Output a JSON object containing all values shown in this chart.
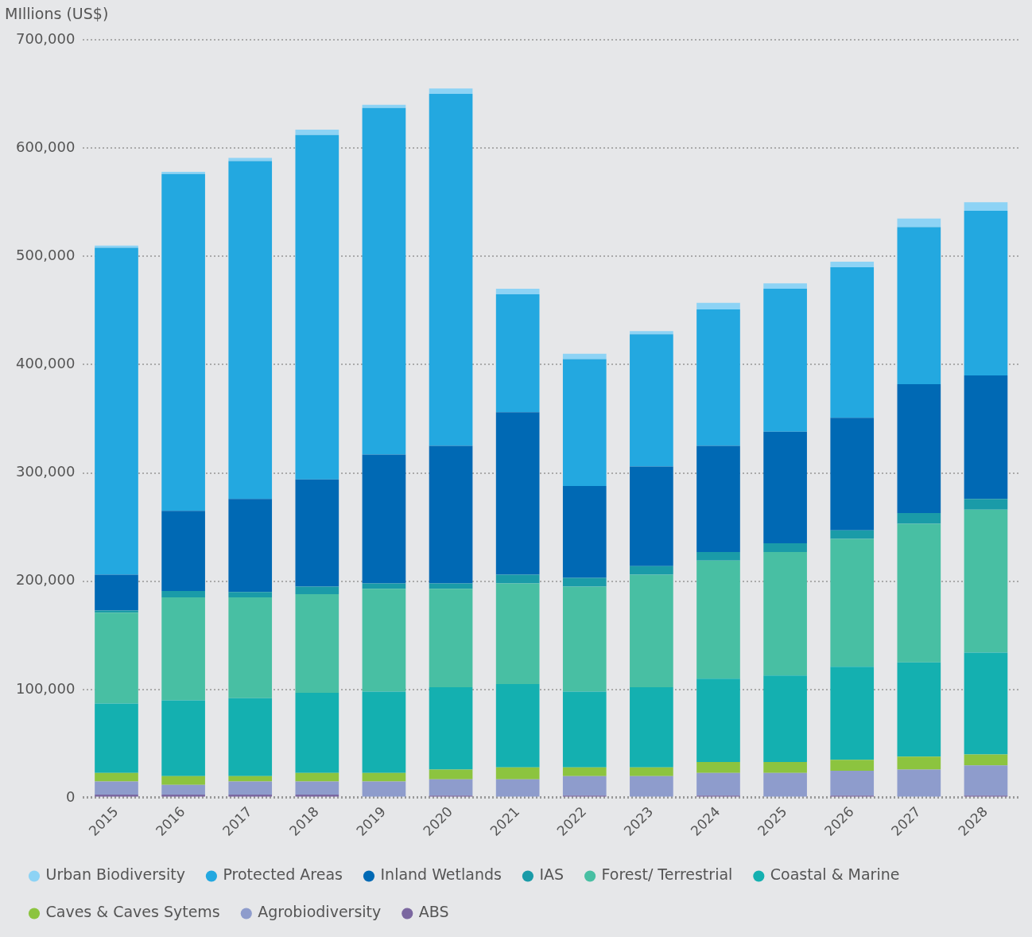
{
  "chart_data": {
    "type": "bar",
    "stacked": true,
    "ylabel": "MIllions (US$)",
    "categories": [
      "2015",
      "2016",
      "2017",
      "2018",
      "2019",
      "2020",
      "2021",
      "2022",
      "2023",
      "2024",
      "2025",
      "2026",
      "2027",
      "2028"
    ],
    "series": [
      {
        "name": "ABS",
        "color": "#7b67a0",
        "values": [
          3000,
          3000,
          3000,
          3000,
          0,
          2000,
          0,
          2000,
          0,
          2000,
          0,
          2000,
          0,
          2000
        ]
      },
      {
        "name": "Agrobiodiversity",
        "color": "#8e9ccc",
        "values": [
          12000,
          9000,
          12000,
          12000,
          15000,
          15000,
          17000,
          18000,
          20000,
          21000,
          23000,
          23000,
          26000,
          28000
        ]
      },
      {
        "name": "Caves & Caves Sytems",
        "color": "#8cc43f",
        "values": [
          8000,
          8000,
          5000,
          8000,
          8000,
          9000,
          11000,
          8000,
          8000,
          10000,
          10000,
          10000,
          12000,
          10000
        ]
      },
      {
        "name": "Coastal & Marine",
        "color": "#14b0b0",
        "values": [
          64000,
          70000,
          72000,
          74000,
          75000,
          76000,
          77000,
          70000,
          74000,
          77000,
          80000,
          86000,
          87000,
          94000
        ]
      },
      {
        "name": "Forest/ Terrestrial",
        "color": "#48bfa3",
        "values": [
          84000,
          95000,
          93000,
          91000,
          95000,
          91000,
          93000,
          97000,
          104000,
          109000,
          114000,
          118000,
          128000,
          132000
        ]
      },
      {
        "name": "IAS",
        "color": "#1a9ba8",
        "values": [
          2000,
          6000,
          5000,
          7000,
          5000,
          5000,
          8000,
          8000,
          8000,
          8000,
          8000,
          8000,
          10000,
          10000
        ]
      },
      {
        "name": "Inland Wetlands",
        "color": "#0069b4",
        "values": [
          33000,
          74000,
          86000,
          99000,
          119000,
          127000,
          150000,
          85000,
          92000,
          98000,
          103000,
          104000,
          119000,
          114000
        ]
      },
      {
        "name": "Protected Areas",
        "color": "#23a8e0",
        "values": [
          302000,
          311000,
          312000,
          318000,
          320000,
          325000,
          109000,
          117000,
          122000,
          126000,
          132000,
          139000,
          145000,
          152000
        ]
      },
      {
        "name": "Urban Biodiversity",
        "color": "#8dd3f5",
        "values": [
          2000,
          2000,
          3000,
          5000,
          3000,
          5000,
          5000,
          5000,
          3000,
          6000,
          5000,
          5000,
          8000,
          8000
        ]
      }
    ],
    "ylim": [
      0,
      700000
    ],
    "yticks": [
      0,
      {
        "value": 100000,
        "label": "100,000"
      },
      {
        "value": 200000,
        "label": "200,000"
      },
      {
        "value": 300000,
        "label": "300,000"
      },
      {
        "value": 400000,
        "label": "400,000"
      },
      {
        "value": 500000,
        "label": "500,000"
      },
      {
        "value": 600000,
        "label": "600,000"
      },
      {
        "value": 700000,
        "label": "700,000"
      }
    ],
    "grid": "y",
    "legend": "bottom",
    "marker": "circle"
  }
}
